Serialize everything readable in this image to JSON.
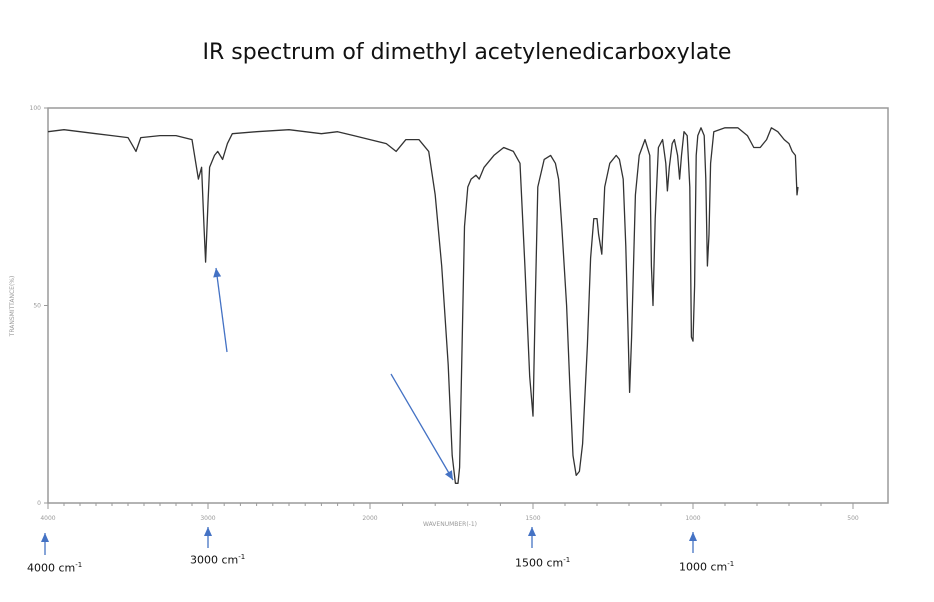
{
  "title": "IR spectrum of dimethyl acetylenedicarboxylate",
  "chart_data": {
    "type": "line",
    "title": "IR spectrum of dimethyl acetylenedicarboxylate",
    "xlabel": "WAVENUMBER(-1)",
    "ylabel": "TRANSMITTANCE(%)",
    "xlim": [
      4000,
      400
    ],
    "ylim": [
      0,
      100
    ],
    "x_ticks": [
      "4000",
      "3000",
      "2000",
      "1500",
      "1000",
      "500"
    ],
    "x_tick_values": [
      4000,
      3000,
      2000,
      1500,
      1000,
      500
    ],
    "y_ticks": [
      "0",
      "50",
      "100"
    ],
    "y_tick_values": [
      0,
      50,
      100
    ],
    "grid": false,
    "series": [
      {
        "color": "#333333",
        "points": [
          [
            4000,
            94
          ],
          [
            3900,
            94.5
          ],
          [
            3800,
            94
          ],
          [
            3700,
            93.5
          ],
          [
            3600,
            93
          ],
          [
            3500,
            92.5
          ],
          [
            3450,
            89
          ],
          [
            3420,
            92.5
          ],
          [
            3300,
            93
          ],
          [
            3200,
            93
          ],
          [
            3100,
            92
          ],
          [
            3060,
            82
          ],
          [
            3040,
            85
          ],
          [
            3025,
            70
          ],
          [
            3015,
            61
          ],
          [
            3000,
            76
          ],
          [
            2990,
            85
          ],
          [
            2960,
            88
          ],
          [
            2940,
            89
          ],
          [
            2910,
            87
          ],
          [
            2880,
            91
          ],
          [
            2850,
            93.5
          ],
          [
            2700,
            94
          ],
          [
            2500,
            94.5
          ],
          [
            2300,
            93.5
          ],
          [
            2200,
            94
          ],
          [
            2100,
            93
          ],
          [
            2000,
            92
          ],
          [
            1950,
            91
          ],
          [
            1920,
            89
          ],
          [
            1890,
            92
          ],
          [
            1850,
            92
          ],
          [
            1820,
            89
          ],
          [
            1800,
            78
          ],
          [
            1780,
            60
          ],
          [
            1760,
            35
          ],
          [
            1748,
            12
          ],
          [
            1738,
            5
          ],
          [
            1730,
            5
          ],
          [
            1725,
            9
          ],
          [
            1720,
            30
          ],
          [
            1710,
            70
          ],
          [
            1700,
            80
          ],
          [
            1690,
            82
          ],
          [
            1675,
            83
          ],
          [
            1665,
            82
          ],
          [
            1650,
            85
          ],
          [
            1620,
            88
          ],
          [
            1590,
            90
          ],
          [
            1560,
            89
          ],
          [
            1540,
            86
          ],
          [
            1525,
            60
          ],
          [
            1510,
            32
          ],
          [
            1500,
            22
          ],
          [
            1493,
            50
          ],
          [
            1485,
            80
          ],
          [
            1465,
            87
          ],
          [
            1445,
            88
          ],
          [
            1430,
            86
          ],
          [
            1420,
            82
          ],
          [
            1410,
            70
          ],
          [
            1395,
            50
          ],
          [
            1385,
            30
          ],
          [
            1375,
            12
          ],
          [
            1365,
            7
          ],
          [
            1355,
            8
          ],
          [
            1345,
            15
          ],
          [
            1330,
            40
          ],
          [
            1320,
            62
          ],
          [
            1310,
            72
          ],
          [
            1300,
            72
          ],
          [
            1295,
            68
          ],
          [
            1285,
            63
          ],
          [
            1276,
            80
          ],
          [
            1260,
            86
          ],
          [
            1240,
            88
          ],
          [
            1230,
            87
          ],
          [
            1218,
            82
          ],
          [
            1210,
            65
          ],
          [
            1203,
            44
          ],
          [
            1198,
            28
          ],
          [
            1192,
            42
          ],
          [
            1180,
            78
          ],
          [
            1168,
            88
          ],
          [
            1150,
            92
          ],
          [
            1135,
            88
          ],
          [
            1130,
            60
          ],
          [
            1125,
            50
          ],
          [
            1118,
            72
          ],
          [
            1108,
            90
          ],
          [
            1095,
            92
          ],
          [
            1085,
            86
          ],
          [
            1080,
            79
          ],
          [
            1074,
            85
          ],
          [
            1065,
            91
          ],
          [
            1058,
            92
          ],
          [
            1048,
            88
          ],
          [
            1042,
            82
          ],
          [
            1036,
            88
          ],
          [
            1028,
            94
          ],
          [
            1018,
            93
          ],
          [
            1010,
            80
          ],
          [
            1005,
            42
          ],
          [
            1000,
            41
          ],
          [
            995,
            55
          ],
          [
            990,
            88
          ],
          [
            985,
            93
          ],
          [
            975,
            95
          ],
          [
            965,
            93
          ],
          [
            960,
            82
          ],
          [
            955,
            60
          ],
          [
            950,
            68
          ],
          [
            945,
            86
          ],
          [
            935,
            94
          ],
          [
            900,
            95
          ],
          [
            860,
            95
          ],
          [
            830,
            93
          ],
          [
            810,
            90
          ],
          [
            790,
            90
          ],
          [
            770,
            92
          ],
          [
            755,
            95
          ],
          [
            735,
            94
          ],
          [
            715,
            92
          ],
          [
            700,
            91
          ],
          [
            690,
            89
          ],
          [
            680,
            88
          ],
          [
            675,
            78
          ],
          [
            672,
            80
          ]
        ]
      }
    ],
    "annotations": [
      {
        "label": "4000 cm",
        "sup": "-1"
      },
      {
        "label": "3000 cm",
        "sup": "-1"
      },
      {
        "label": "1500 cm",
        "sup": "-1"
      },
      {
        "label": "1000 cm",
        "sup": "-1"
      }
    ],
    "annotation_color": "#4472c4"
  }
}
